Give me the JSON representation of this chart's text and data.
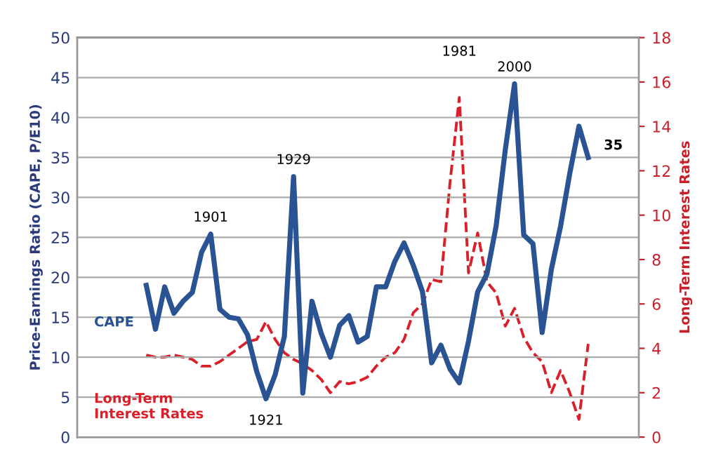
{
  "chart_data": {
    "type": "line",
    "ylabel": "Price-Earnings Ratio (CAPE, P/E10)",
    "y2label": "Long-Term Interest Rates",
    "categories": [
      null,
      null,
      null,
      null,
      null,
      null,
      null,
      null,
      null,
      null,
      null,
      null,
      null,
      null,
      null,
      null,
      null,
      null,
      null,
      null,
      null,
      null,
      null,
      null,
      null,
      null,
      null,
      null,
      null,
      null,
      null,
      null,
      null,
      null,
      null,
      null,
      null,
      null,
      null,
      null,
      null,
      null,
      null,
      null,
      null,
      null,
      null,
      null,
      null,
      null,
      null,
      null,
      null,
      null,
      null,
      null,
      null,
      null,
      null,
      null,
      null
    ],
    "ylim": [
      0,
      50
    ],
    "yticks": [
      0,
      5,
      10,
      15,
      20,
      25,
      30,
      35,
      40,
      45,
      50
    ],
    "y2lim": [
      0,
      18
    ],
    "y2ticks": [
      0,
      2,
      4,
      6,
      8,
      10,
      12,
      14,
      16,
      18
    ],
    "grid": "y",
    "series": [
      {
        "name": "CAPE",
        "color": "#2a5394",
        "values": [
          null,
          null,
          null,
          null,
          null,
          null,
          null,
          19.0,
          13.5,
          18.8,
          15.5,
          17.0,
          18.1,
          23.1,
          25.4,
          16.0,
          15.0,
          14.8,
          12.8,
          8.2,
          4.8,
          7.8,
          12.6,
          32.6,
          5.5,
          17.0,
          13.0,
          10.0,
          14.0,
          15.2,
          11.9,
          12.6,
          18.8,
          18.8,
          22.0,
          24.3,
          21.5,
          18.2,
          9.3,
          11.5,
          8.5,
          6.8,
          12.0,
          18.2,
          20.4,
          26.4,
          36.0,
          44.2,
          25.3,
          24.2,
          13.1,
          21.0,
          26.4,
          33.0,
          38.9,
          35.0,
          null,
          null,
          null,
          null,
          null
        ]
      },
      {
        "name": "Long-Term\nInterest Rates",
        "color": "#d9202a",
        "axis": "y2",
        "line_style": "dashed",
        "values": [
          null,
          null,
          null,
          null,
          null,
          null,
          null,
          3.7,
          3.6,
          3.6,
          3.7,
          3.6,
          3.5,
          3.2,
          3.2,
          3.4,
          3.7,
          4.0,
          4.3,
          4.4,
          5.2,
          4.4,
          3.8,
          3.5,
          3.3,
          3.0,
          2.6,
          2.0,
          2.5,
          2.4,
          2.5,
          2.7,
          3.2,
          3.6,
          3.8,
          4.4,
          5.6,
          6.0,
          7.1,
          7.0,
          11.5,
          15.3,
          7.4,
          9.2,
          7.0,
          6.5,
          5.0,
          5.8,
          4.5,
          3.8,
          3.4,
          2.0,
          3.0,
          2.0,
          0.8,
          4.2,
          null,
          null,
          null,
          null,
          null
        ]
      }
    ],
    "annotations": [
      {
        "text": "1901",
        "y": 25.4
      },
      {
        "text": "1929",
        "y": 32.6
      },
      {
        "text": "1921",
        "y": 4.8
      },
      "1981",
      {
        "text": "2000",
        "y": 44.2
      },
      "35"
    ]
  }
}
